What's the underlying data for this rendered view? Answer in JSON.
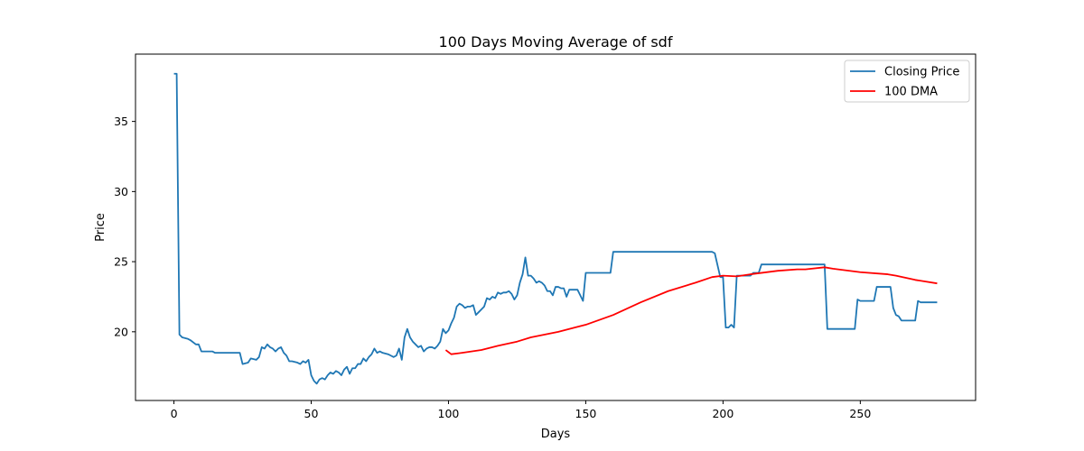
{
  "chart_data": {
    "type": "line",
    "title": "100 Days Moving Average of sdf",
    "xlabel": "Days",
    "ylabel": "Price",
    "xlim": [
      -14,
      292
    ],
    "ylim": [
      15.1,
      39.8
    ],
    "xticks": [
      0,
      50,
      100,
      150,
      200,
      250
    ],
    "yticks": [
      20,
      25,
      30,
      35
    ],
    "grid": false,
    "legend_position": "top-right",
    "series": [
      {
        "name": "Closing Price",
        "color": "#1f77b4",
        "points": [
          [
            0,
            38.4
          ],
          [
            1,
            38.4
          ],
          [
            2,
            19.8
          ],
          [
            3,
            19.6
          ],
          [
            5,
            19.5
          ],
          [
            6,
            19.4
          ],
          [
            8,
            19.1
          ],
          [
            9,
            19.1
          ],
          [
            10,
            18.6
          ],
          [
            12,
            18.6
          ],
          [
            13,
            18.6
          ],
          [
            14,
            18.6
          ],
          [
            15,
            18.5
          ],
          [
            20,
            18.5
          ],
          [
            24,
            18.5
          ],
          [
            25,
            17.7
          ],
          [
            27,
            17.8
          ],
          [
            28,
            18.1
          ],
          [
            30,
            18.0
          ],
          [
            31,
            18.2
          ],
          [
            32,
            18.9
          ],
          [
            33,
            18.8
          ],
          [
            34,
            19.1
          ],
          [
            35,
            18.9
          ],
          [
            36,
            18.8
          ],
          [
            37,
            18.6
          ],
          [
            38,
            18.8
          ],
          [
            39,
            18.9
          ],
          [
            40,
            18.5
          ],
          [
            41,
            18.3
          ],
          [
            42,
            17.9
          ],
          [
            43,
            17.9
          ],
          [
            45,
            17.8
          ],
          [
            46,
            17.7
          ],
          [
            47,
            17.9
          ],
          [
            48,
            17.8
          ],
          [
            49,
            18.0
          ],
          [
            50,
            16.9
          ],
          [
            51,
            16.5
          ],
          [
            52,
            16.3
          ],
          [
            53,
            16.6
          ],
          [
            54,
            16.7
          ],
          [
            55,
            16.6
          ],
          [
            56,
            16.9
          ],
          [
            57,
            17.1
          ],
          [
            58,
            17.0
          ],
          [
            59,
            17.2
          ],
          [
            60,
            17.1
          ],
          [
            61,
            16.9
          ],
          [
            62,
            17.3
          ],
          [
            63,
            17.5
          ],
          [
            64,
            17.0
          ],
          [
            65,
            17.4
          ],
          [
            66,
            17.4
          ],
          [
            67,
            17.7
          ],
          [
            68,
            17.7
          ],
          [
            69,
            18.1
          ],
          [
            70,
            17.9
          ],
          [
            71,
            18.2
          ],
          [
            72,
            18.4
          ],
          [
            73,
            18.8
          ],
          [
            74,
            18.5
          ],
          [
            75,
            18.6
          ],
          [
            76,
            18.5
          ],
          [
            78,
            18.4
          ],
          [
            79,
            18.3
          ],
          [
            80,
            18.2
          ],
          [
            81,
            18.3
          ],
          [
            82,
            18.8
          ],
          [
            83,
            18.0
          ],
          [
            84,
            19.6
          ],
          [
            85,
            20.2
          ],
          [
            86,
            19.6
          ],
          [
            87,
            19.3
          ],
          [
            88,
            19.1
          ],
          [
            89,
            18.9
          ],
          [
            90,
            19.0
          ],
          [
            91,
            18.6
          ],
          [
            92,
            18.8
          ],
          [
            93,
            18.9
          ],
          [
            94,
            18.9
          ],
          [
            95,
            18.8
          ],
          [
            96,
            19.0
          ],
          [
            97,
            19.3
          ],
          [
            98,
            20.2
          ],
          [
            99,
            19.9
          ],
          [
            100,
            20.1
          ],
          [
            101,
            20.6
          ],
          [
            102,
            21.0
          ],
          [
            103,
            21.8
          ],
          [
            104,
            22.0
          ],
          [
            105,
            21.9
          ],
          [
            106,
            21.7
          ],
          [
            107,
            21.8
          ],
          [
            108,
            21.8
          ],
          [
            109,
            21.9
          ],
          [
            110,
            21.2
          ],
          [
            111,
            21.4
          ],
          [
            112,
            21.6
          ],
          [
            113,
            21.8
          ],
          [
            114,
            22.4
          ],
          [
            115,
            22.3
          ],
          [
            116,
            22.5
          ],
          [
            117,
            22.4
          ],
          [
            118,
            22.8
          ],
          [
            119,
            22.7
          ],
          [
            120,
            22.8
          ],
          [
            121,
            22.8
          ],
          [
            122,
            22.9
          ],
          [
            123,
            22.7
          ],
          [
            124,
            22.3
          ],
          [
            125,
            22.6
          ],
          [
            126,
            23.5
          ],
          [
            127,
            24.1
          ],
          [
            128,
            25.3
          ],
          [
            129,
            24.0
          ],
          [
            130,
            24.0
          ],
          [
            131,
            23.8
          ],
          [
            132,
            23.5
          ],
          [
            133,
            23.6
          ],
          [
            134,
            23.5
          ],
          [
            135,
            23.3
          ],
          [
            136,
            22.9
          ],
          [
            137,
            22.9
          ],
          [
            138,
            22.6
          ],
          [
            139,
            23.2
          ],
          [
            140,
            23.2
          ],
          [
            141,
            23.1
          ],
          [
            142,
            23.1
          ],
          [
            143,
            22.5
          ],
          [
            144,
            23.0
          ],
          [
            145,
            23.0
          ],
          [
            146,
            23.0
          ],
          [
            147,
            23.0
          ],
          [
            148,
            22.6
          ],
          [
            149,
            22.2
          ],
          [
            150,
            24.2
          ],
          [
            151,
            24.2
          ],
          [
            159,
            24.2
          ],
          [
            160,
            25.7
          ],
          [
            170,
            25.7
          ],
          [
            180,
            25.7
          ],
          [
            196,
            25.7
          ],
          [
            197,
            25.6
          ],
          [
            199,
            23.9
          ],
          [
            200,
            23.9
          ],
          [
            201,
            20.3
          ],
          [
            202,
            20.3
          ],
          [
            203,
            20.5
          ],
          [
            204,
            20.3
          ],
          [
            205,
            24.0
          ],
          [
            206,
            24.0
          ],
          [
            210,
            24.0
          ],
          [
            211,
            24.2
          ],
          [
            213,
            24.2
          ],
          [
            214,
            24.8
          ],
          [
            220,
            24.8
          ],
          [
            230,
            24.8
          ],
          [
            237,
            24.8
          ],
          [
            238,
            20.2
          ],
          [
            240,
            20.2
          ],
          [
            248,
            20.2
          ],
          [
            249,
            22.3
          ],
          [
            250,
            22.2
          ],
          [
            255,
            22.2
          ],
          [
            256,
            23.2
          ],
          [
            260,
            23.2
          ],
          [
            261,
            23.2
          ],
          [
            262,
            21.7
          ],
          [
            263,
            21.2
          ],
          [
            264,
            21.1
          ],
          [
            265,
            20.8
          ],
          [
            270,
            20.8
          ],
          [
            271,
            22.2
          ],
          [
            272,
            22.1
          ],
          [
            278,
            22.1
          ]
        ]
      },
      {
        "name": "100 DMA",
        "color": "#ff0000",
        "points": [
          [
            99,
            18.7
          ],
          [
            101,
            18.4
          ],
          [
            105,
            18.5
          ],
          [
            112,
            18.7
          ],
          [
            118,
            19.0
          ],
          [
            125,
            19.3
          ],
          [
            130,
            19.6
          ],
          [
            140,
            20.0
          ],
          [
            150,
            20.5
          ],
          [
            160,
            21.2
          ],
          [
            170,
            22.1
          ],
          [
            180,
            22.9
          ],
          [
            190,
            23.5
          ],
          [
            196,
            23.9
          ],
          [
            200,
            24.0
          ],
          [
            205,
            23.95
          ],
          [
            210,
            24.1
          ],
          [
            220,
            24.35
          ],
          [
            227,
            24.45
          ],
          [
            230,
            24.45
          ],
          [
            237,
            24.6
          ],
          [
            240,
            24.5
          ],
          [
            250,
            24.25
          ],
          [
            260,
            24.1
          ],
          [
            263,
            24.0
          ],
          [
            270,
            23.7
          ],
          [
            278,
            23.45
          ]
        ]
      }
    ]
  }
}
